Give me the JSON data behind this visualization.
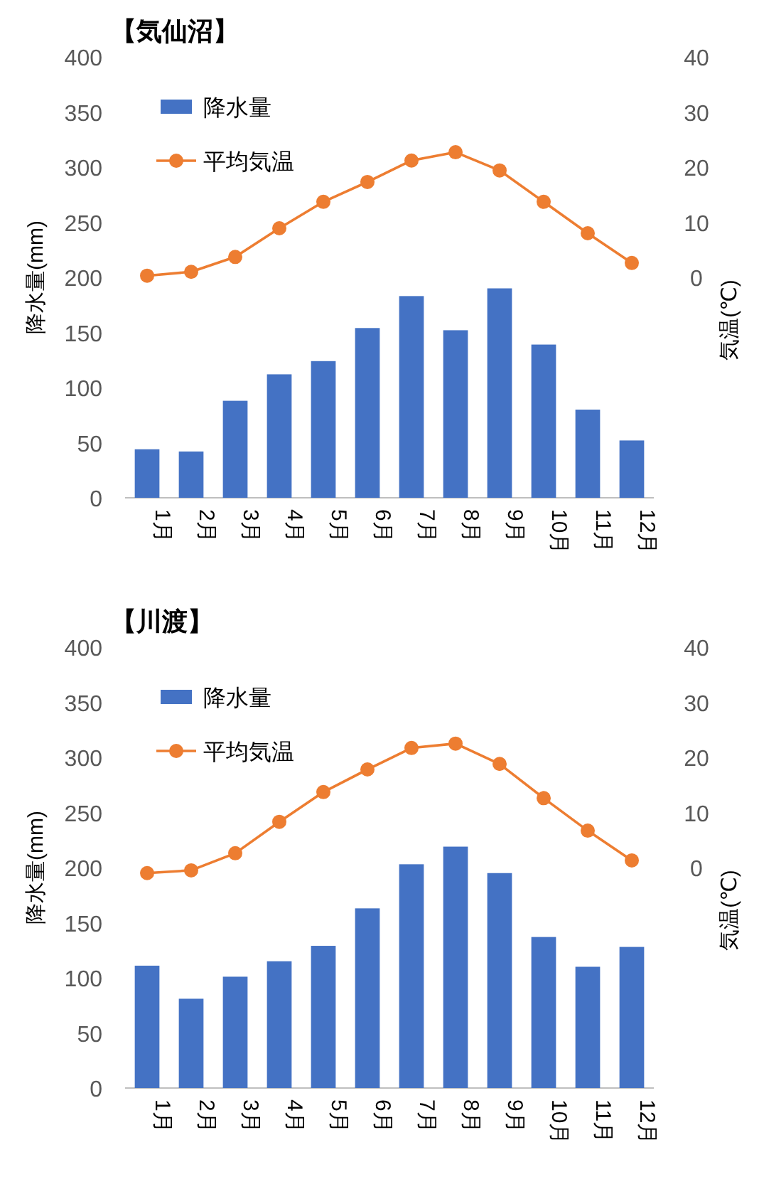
{
  "chart_data": [
    {
      "type": "bar",
      "title": "【気仙沼】",
      "ylabel": "降水量(mm)",
      "y2label": "気温(℃)",
      "categories": [
        "1月",
        "2月",
        "3月",
        "4月",
        "5月",
        "6月",
        "7月",
        "8月",
        "9月",
        "10月",
        "11月",
        "12月"
      ],
      "series": [
        {
          "name": "降水量",
          "color": "#4472c4",
          "values": [
            44,
            42,
            88,
            112,
            124,
            154,
            183,
            152,
            190,
            139,
            80,
            52
          ]
        },
        {
          "name": "平均気温",
          "type": "line",
          "axis": "y2",
          "color": "#ed7d31",
          "marker": "circle",
          "values": [
            0.3,
            1,
            3.7,
            8.9,
            13.7,
            17.3,
            21.2,
            22.7,
            19.4,
            13.7,
            8,
            2.6
          ]
        }
      ],
      "ylim": [
        0,
        400
      ],
      "yticks": [
        0,
        50,
        100,
        150,
        200,
        250,
        300,
        350,
        400
      ],
      "y2lim": [
        -40,
        40
      ],
      "y2ticks": [
        0,
        10,
        20,
        30,
        40
      ],
      "legend": "top left",
      "grid": false
    },
    {
      "type": "bar",
      "title": "【川渡】",
      "ylabel": "降水量(mm)",
      "y2label": "気温(℃)",
      "categories": [
        "1月",
        "2月",
        "3月",
        "4月",
        "5月",
        "6月",
        "7月",
        "8月",
        "9月",
        "10月",
        "11月",
        "12月"
      ],
      "series": [
        {
          "name": "降水量",
          "color": "#4472c4",
          "values": [
            111,
            81,
            101,
            115,
            129,
            163,
            203,
            219,
            195,
            137,
            110,
            128
          ]
        },
        {
          "name": "平均気温",
          "type": "line",
          "axis": "y2",
          "color": "#ed7d31",
          "marker": "circle",
          "values": [
            -1,
            -0.5,
            2.6,
            8.3,
            13.7,
            17.8,
            21.7,
            22.5,
            18.8,
            12.6,
            6.7,
            1.3
          ]
        }
      ],
      "ylim": [
        0,
        400
      ],
      "yticks": [
        0,
        50,
        100,
        150,
        200,
        250,
        300,
        350,
        400
      ],
      "y2lim": [
        -40,
        40
      ],
      "y2ticks": [
        0,
        10,
        20,
        30,
        40
      ],
      "legend": "top left",
      "grid": false
    }
  ]
}
